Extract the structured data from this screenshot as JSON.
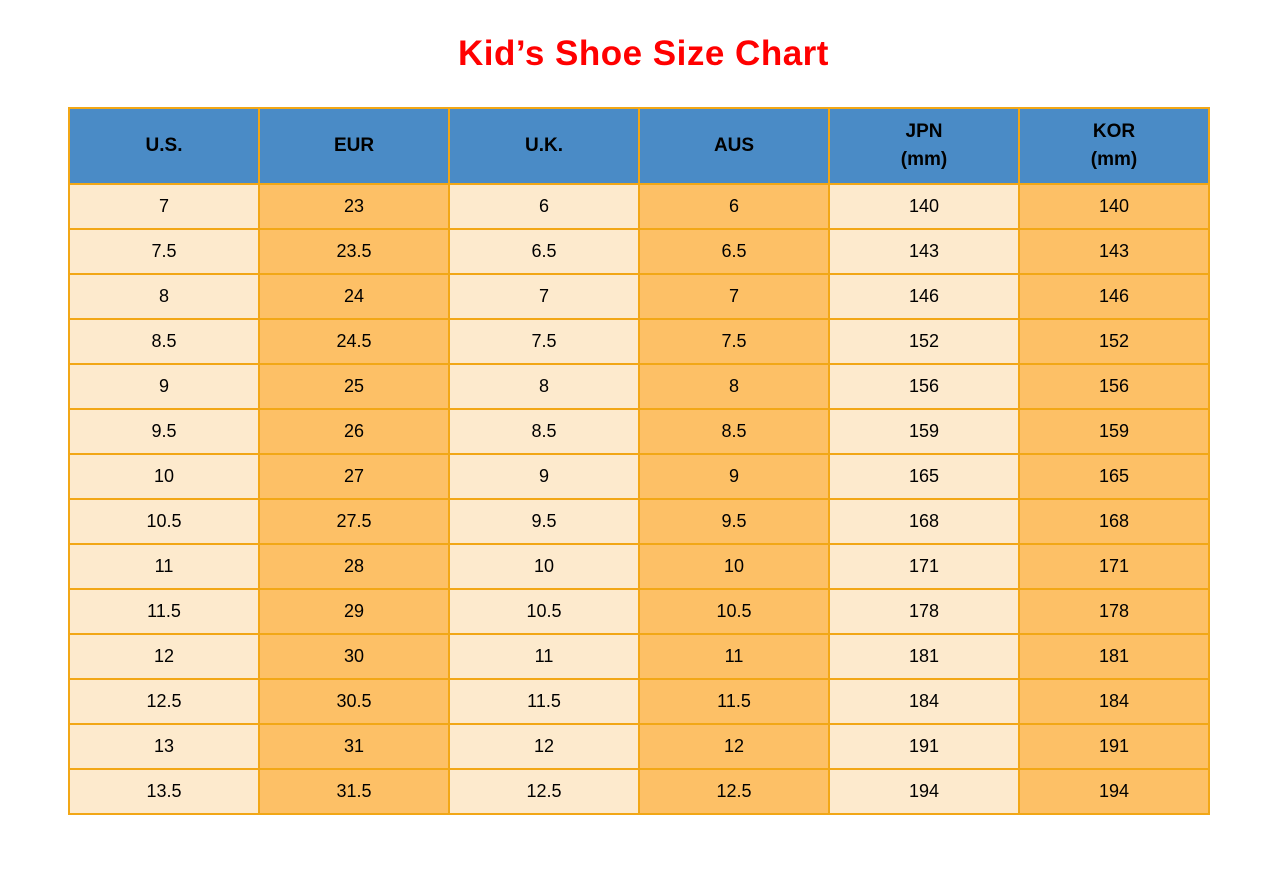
{
  "title": "Kid’s Shoe Size Chart",
  "colors": {
    "title": "#FF0000",
    "header_bg": "#4A8BC6",
    "header_text": "#000000",
    "cell_light": "#FDEACD",
    "cell_orange": "#FDC066",
    "border": "#F2A716",
    "page_bg": "#FFFFFF"
  },
  "chart_data": {
    "type": "table",
    "title": "Kid’s Shoe Size Chart",
    "columns": [
      {
        "id": "us",
        "label": "U.S."
      },
      {
        "id": "eur",
        "label": "EUR"
      },
      {
        "id": "uk",
        "label": "U.K."
      },
      {
        "id": "aus",
        "label": "AUS"
      },
      {
        "id": "jpn",
        "label": "JPN\n(mm)"
      },
      {
        "id": "kor",
        "label": "KOR\n(mm)"
      }
    ],
    "rows": [
      [
        "7",
        "23",
        "6",
        "6",
        "140",
        "140"
      ],
      [
        "7.5",
        "23.5",
        "6.5",
        "6.5",
        "143",
        "143"
      ],
      [
        "8",
        "24",
        "7",
        "7",
        "146",
        "146"
      ],
      [
        "8.5",
        "24.5",
        "7.5",
        "7.5",
        "152",
        "152"
      ],
      [
        "9",
        "25",
        "8",
        "8",
        "156",
        "156"
      ],
      [
        "9.5",
        "26",
        "8.5",
        "8.5",
        "159",
        "159"
      ],
      [
        "10",
        "27",
        "9",
        "9",
        "165",
        "165"
      ],
      [
        "10.5",
        "27.5",
        "9.5",
        "9.5",
        "168",
        "168"
      ],
      [
        "11",
        "28",
        "10",
        "10",
        "171",
        "171"
      ],
      [
        "11.5",
        "29",
        "10.5",
        "10.5",
        "178",
        "178"
      ],
      [
        "12",
        "30",
        "11",
        "11",
        "181",
        "181"
      ],
      [
        "12.5",
        "30.5",
        "11.5",
        "11.5",
        "184",
        "184"
      ],
      [
        "13",
        "31",
        "12",
        "12",
        "191",
        "191"
      ],
      [
        "13.5",
        "31.5",
        "12.5",
        "12.5",
        "194",
        "194"
      ]
    ]
  }
}
